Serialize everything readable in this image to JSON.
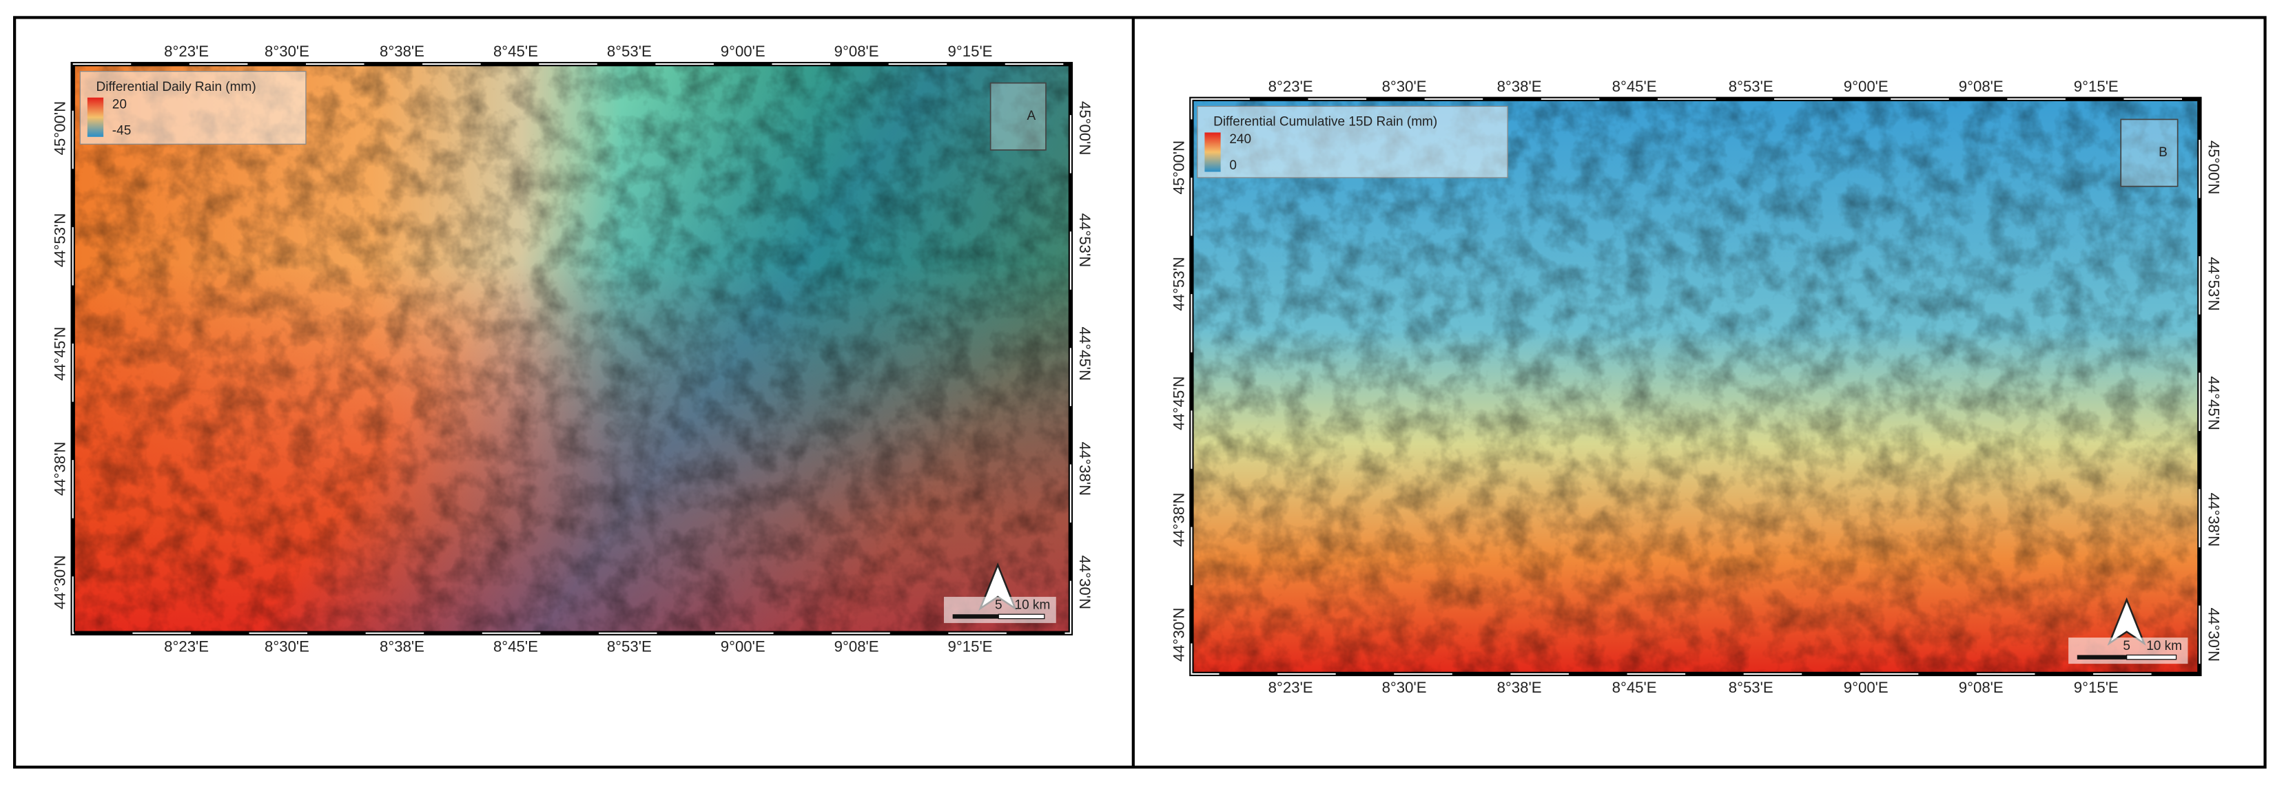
{
  "panels": [
    {
      "label": "A",
      "legend": {
        "title": "Differential Daily Rain (mm)",
        "max": 20,
        "min": -45
      },
      "lon_ticks": [
        "8°23'E",
        "8°30'E",
        "8°38'E",
        "8°45'E",
        "8°53'E",
        "9°00'E",
        "9°08'E",
        "9°15'E"
      ],
      "lat_ticks": [
        "45°00'N",
        "44°53'N",
        "44°45'N",
        "44°38'N",
        "44°30'N"
      ],
      "scale_bar": [
        "5",
        "10 km"
      ]
    },
    {
      "label": "B",
      "legend": {
        "title": "Differential Cumulative 15D Rain (mm)",
        "max": 240,
        "min": 0
      },
      "lon_ticks": [
        "8°23'E",
        "8°30'E",
        "8°38'E",
        "8°45'E",
        "8°53'E",
        "9°00'E",
        "9°08'E",
        "9°15'E"
      ],
      "lat_ticks": [
        "45°00'N",
        "44°53'N",
        "44°45'N",
        "44°38'N",
        "44°30'N"
      ],
      "scale_bar": [
        "5",
        "10 km"
      ]
    }
  ]
}
